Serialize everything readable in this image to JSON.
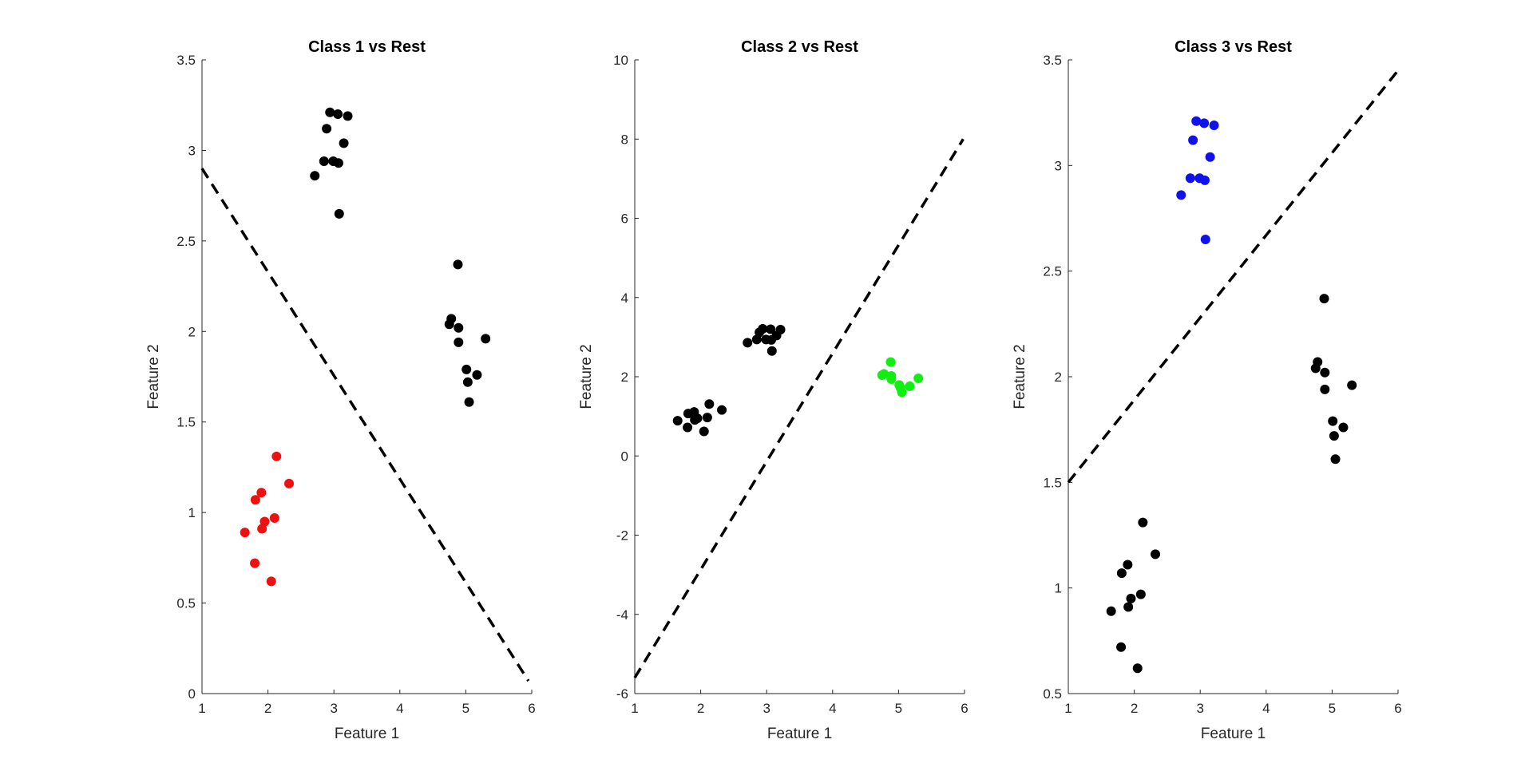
{
  "chart_data": [
    {
      "type": "scatter",
      "title": "Class 1 vs Rest",
      "xlabel": "Feature 1",
      "ylabel": "Feature 2",
      "xlim": [
        1,
        6
      ],
      "ylim": [
        0,
        3.5
      ],
      "xticks": [
        1,
        2,
        3,
        4,
        5,
        6
      ],
      "xtick_labels": [
        "1",
        "2",
        "3",
        "4",
        "5",
        "6"
      ],
      "yticks": [
        0,
        0.5,
        1,
        1.5,
        2,
        2.5,
        3,
        3.5
      ],
      "ytick_labels": [
        "0",
        "0.5",
        "1",
        "1.5",
        "2",
        "2.5",
        "3",
        "3.5"
      ],
      "grid": false,
      "boundary": {
        "style": "dashed",
        "color": "#000000",
        "x": [
          1,
          5.95
        ],
        "y": [
          2.9,
          0.07
        ]
      },
      "series": [
        {
          "color": "#ee1111",
          "x": [
            1.65,
            1.8,
            1.81,
            1.9,
            1.91,
            1.95,
            2.05,
            2.1,
            2.13,
            2.32
          ],
          "y": [
            0.89,
            0.72,
            1.07,
            1.11,
            0.91,
            0.95,
            0.62,
            0.97,
            1.31,
            1.16
          ]
        },
        {
          "color": "#000000",
          "x": [
            2.71,
            2.85,
            2.89,
            2.94,
            2.99,
            3.06,
            3.07,
            3.08,
            3.15,
            3.21
          ],
          "y": [
            2.86,
            2.94,
            3.12,
            3.21,
            2.94,
            3.2,
            2.93,
            2.65,
            3.04,
            3.19
          ]
        },
        {
          "color": "#000000",
          "x": [
            4.75,
            4.78,
            4.88,
            4.89,
            4.89,
            5.01,
            5.03,
            5.05,
            5.17,
            5.3
          ],
          "y": [
            2.04,
            2.07,
            2.37,
            2.02,
            1.94,
            1.79,
            1.72,
            1.61,
            1.76,
            1.96
          ]
        }
      ]
    },
    {
      "type": "scatter",
      "title": "Class 2 vs Rest",
      "xlabel": "Feature 1",
      "ylabel": "Feature 2",
      "xlim": [
        1,
        6
      ],
      "ylim": [
        -6,
        10
      ],
      "xticks": [
        1,
        2,
        3,
        4,
        5,
        6
      ],
      "xtick_labels": [
        "1",
        "2",
        "3",
        "4",
        "5",
        "6"
      ],
      "yticks": [
        -6,
        -4,
        -2,
        0,
        2,
        4,
        6,
        8,
        10
      ],
      "ytick_labels": [
        "-6",
        "-4",
        "-2",
        "0",
        "2",
        "4",
        "6",
        "8",
        "10"
      ],
      "grid": false,
      "boundary": {
        "style": "dashed",
        "color": "#000000",
        "x": [
          1,
          5.98
        ],
        "y": [
          -5.6,
          8.0
        ]
      },
      "series": [
        {
          "color": "#000000",
          "x": [
            1.65,
            1.8,
            1.81,
            1.9,
            1.91,
            1.95,
            2.05,
            2.1,
            2.13,
            2.32
          ],
          "y": [
            0.89,
            0.72,
            1.07,
            1.11,
            0.91,
            0.95,
            0.62,
            0.97,
            1.31,
            1.16
          ]
        },
        {
          "color": "#000000",
          "x": [
            2.71,
            2.85,
            2.89,
            2.94,
            2.99,
            3.06,
            3.07,
            3.08,
            3.15,
            3.21
          ],
          "y": [
            2.86,
            2.94,
            3.12,
            3.21,
            2.94,
            3.2,
            2.93,
            2.65,
            3.04,
            3.19
          ]
        },
        {
          "color": "#11ee11",
          "x": [
            4.75,
            4.78,
            4.88,
            4.89,
            4.89,
            5.01,
            5.03,
            5.05,
            5.17,
            5.3
          ],
          "y": [
            2.04,
            2.07,
            2.37,
            2.02,
            1.94,
            1.79,
            1.72,
            1.61,
            1.76,
            1.96
          ]
        }
      ]
    },
    {
      "type": "scatter",
      "title": "Class 3 vs Rest",
      "xlabel": "Feature 1",
      "ylabel": "Feature 2",
      "xlim": [
        1,
        6
      ],
      "ylim": [
        0.5,
        3.5
      ],
      "xticks": [
        1,
        2,
        3,
        4,
        5,
        6
      ],
      "xtick_labels": [
        "1",
        "2",
        "3",
        "4",
        "5",
        "6"
      ],
      "yticks": [
        0.5,
        1,
        1.5,
        2,
        2.5,
        3,
        3.5
      ],
      "ytick_labels": [
        "0.5",
        "1",
        "1.5",
        "2",
        "2.5",
        "3",
        "3.5"
      ],
      "grid": false,
      "boundary": {
        "style": "dashed",
        "color": "#000000",
        "x": [
          1,
          6
        ],
        "y": [
          1.5,
          3.45
        ]
      },
      "series": [
        {
          "color": "#000000",
          "x": [
            1.65,
            1.8,
            1.81,
            1.9,
            1.91,
            1.95,
            2.05,
            2.1,
            2.13,
            2.32
          ],
          "y": [
            0.89,
            0.72,
            1.07,
            1.11,
            0.91,
            0.95,
            0.62,
            0.97,
            1.31,
            1.16
          ]
        },
        {
          "color": "#1111ee",
          "x": [
            2.71,
            2.85,
            2.89,
            2.94,
            2.99,
            3.06,
            3.07,
            3.08,
            3.15,
            3.21
          ],
          "y": [
            2.86,
            2.94,
            3.12,
            3.21,
            2.94,
            3.2,
            2.93,
            2.65,
            3.04,
            3.19
          ]
        },
        {
          "color": "#000000",
          "x": [
            4.75,
            4.78,
            4.88,
            4.89,
            4.89,
            5.01,
            5.03,
            5.05,
            5.17,
            5.3
          ],
          "y": [
            2.04,
            2.07,
            2.37,
            2.02,
            1.94,
            1.79,
            1.72,
            1.61,
            1.76,
            1.96
          ]
        }
      ]
    }
  ]
}
